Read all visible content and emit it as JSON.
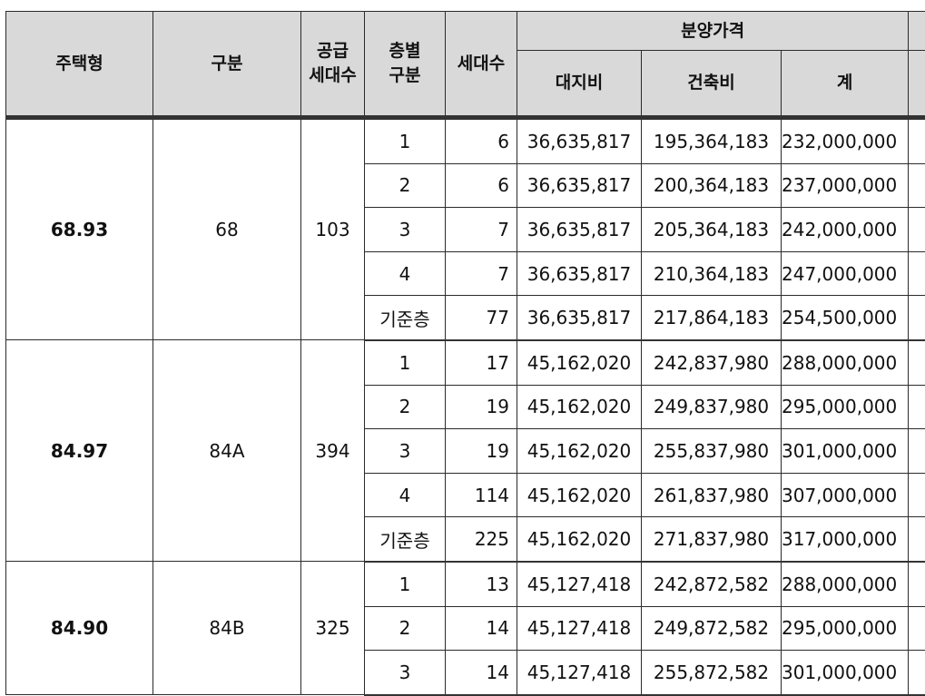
{
  "table": {
    "headers": {
      "housing_type": "주택형",
      "category": "구분",
      "supply_units": "공급\n세대수",
      "floor_category": "층별\n구분",
      "units": "세대수",
      "sale_price": "분양가격",
      "land_cost": "대지비",
      "construction_cost": "건축비",
      "total": "계"
    },
    "groups": [
      {
        "housing_type": "68.93",
        "category": "68",
        "supply_units": "103",
        "rows": [
          {
            "floor": "1",
            "units": "6",
            "land": "36,635,817",
            "construction": "195,364,183",
            "total": "232,000,000"
          },
          {
            "floor": "2",
            "units": "6",
            "land": "36,635,817",
            "construction": "200,364,183",
            "total": "237,000,000"
          },
          {
            "floor": "3",
            "units": "7",
            "land": "36,635,817",
            "construction": "205,364,183",
            "total": "242,000,000"
          },
          {
            "floor": "4",
            "units": "7",
            "land": "36,635,817",
            "construction": "210,364,183",
            "total": "247,000,000"
          },
          {
            "floor": "기준층",
            "units": "77",
            "land": "36,635,817",
            "construction": "217,864,183",
            "total": "254,500,000"
          }
        ]
      },
      {
        "housing_type": "84.97",
        "category": "84A",
        "supply_units": "394",
        "rows": [
          {
            "floor": "1",
            "units": "17",
            "land": "45,162,020",
            "construction": "242,837,980",
            "total": "288,000,000"
          },
          {
            "floor": "2",
            "units": "19",
            "land": "45,162,020",
            "construction": "249,837,980",
            "total": "295,000,000"
          },
          {
            "floor": "3",
            "units": "19",
            "land": "45,162,020",
            "construction": "255,837,980",
            "total": "301,000,000"
          },
          {
            "floor": "4",
            "units": "114",
            "land": "45,162,020",
            "construction": "261,837,980",
            "total": "307,000,000"
          },
          {
            "floor": "기준층",
            "units": "225",
            "land": "45,162,020",
            "construction": "271,837,980",
            "total": "317,000,000"
          }
        ]
      },
      {
        "housing_type": "84.90",
        "category": "84B",
        "supply_units": "325",
        "rows": [
          {
            "floor": "1",
            "units": "13",
            "land": "45,127,418",
            "construction": "242,872,582",
            "total": "288,000,000"
          },
          {
            "floor": "2",
            "units": "14",
            "land": "45,127,418",
            "construction": "249,872,582",
            "total": "295,000,000"
          },
          {
            "floor": "3",
            "units": "14",
            "land": "45,127,418",
            "construction": "255,872,582",
            "total": "301,000,000"
          }
        ]
      }
    ]
  }
}
